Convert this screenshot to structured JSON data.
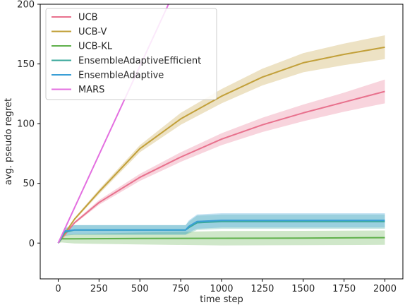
{
  "chart_data": {
    "type": "line",
    "xlabel": "time step",
    "ylabel": "avg. pseudo regret",
    "xlim": [
      -110,
      2110
    ],
    "ylim": [
      -30,
      200
    ],
    "xticks": [
      0,
      250,
      500,
      750,
      1000,
      1250,
      1500,
      1750,
      2000
    ],
    "yticks": [
      0,
      50,
      100,
      150,
      200
    ],
    "grid": false,
    "legend_position": "top-left",
    "series": [
      {
        "name": "UCB",
        "color": "#e8718d",
        "x": [
          0,
          100,
          250,
          500,
          750,
          1000,
          1250,
          1500,
          1750,
          2000
        ],
        "y": [
          0,
          17,
          34,
          55,
          72,
          87,
          99,
          109,
          118,
          127
        ],
        "band": [
          0,
          1,
          2,
          3,
          4,
          5,
          6,
          7,
          8,
          10
        ]
      },
      {
        "name": "UCB-V",
        "color": "#c2a03a",
        "x": [
          0,
          100,
          250,
          500,
          750,
          1000,
          1250,
          1500,
          1750,
          2000
        ],
        "y": [
          0,
          20,
          43,
          79,
          104,
          123,
          139,
          151,
          158,
          164
        ],
        "band": [
          0,
          1,
          2,
          3,
          5,
          6,
          7,
          8,
          9,
          10
        ]
      },
      {
        "name": "UCB-KL",
        "color": "#5fb04b",
        "x": [
          0,
          20,
          100,
          500,
          1000,
          1500,
          2000
        ],
        "y": [
          0,
          3.5,
          3.6,
          3.8,
          4.0,
          4.2,
          4.5
        ],
        "band": [
          0,
          3,
          4,
          5,
          6,
          6,
          6
        ]
      },
      {
        "name": "EnsembleAdaptiveEfficient",
        "color": "#3aa89b",
        "x": [
          0,
          40,
          100,
          780,
          800,
          850,
          1000,
          2000
        ],
        "y": [
          0,
          9,
          11,
          11,
          13,
          17,
          18,
          18
        ],
        "band": [
          0,
          3,
          4,
          4,
          5,
          6,
          6,
          6
        ]
      },
      {
        "name": "EnsembleAdaptive",
        "color": "#3a9fd6",
        "x": [
          0,
          40,
          100,
          780,
          800,
          850,
          1000,
          2000
        ],
        "y": [
          0,
          10,
          11,
          11,
          14,
          18,
          19,
          19
        ],
        "band": [
          0,
          3,
          4,
          4,
          5,
          6,
          6,
          6
        ]
      },
      {
        "name": "MARS",
        "color": "#e36fe0",
        "x": [
          0,
          675
        ],
        "y": [
          0,
          200
        ],
        "band": [
          0,
          0
        ]
      }
    ]
  }
}
